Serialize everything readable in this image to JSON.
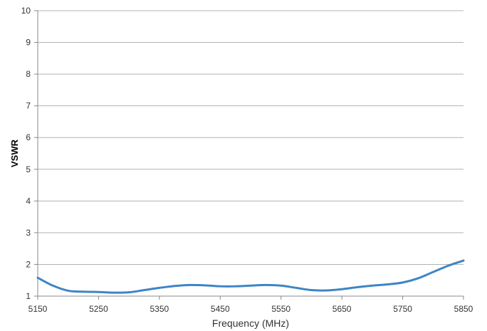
{
  "chart_data": {
    "type": "line",
    "title": "",
    "xlabel": "Frequency (MHz)",
    "ylabel": "VSWR",
    "xlim": [
      5150,
      5850
    ],
    "ylim": [
      1,
      10
    ],
    "x_ticks": [
      5150,
      5250,
      5350,
      5450,
      5550,
      5650,
      5750,
      5850
    ],
    "y_ticks": [
      1,
      2,
      3,
      4,
      5,
      6,
      7,
      8,
      9,
      10
    ],
    "grid": "horizontal",
    "legend": "none",
    "series": [
      {
        "color": "#3d85c6",
        "x": [
          5150,
          5175,
          5200,
          5225,
          5250,
          5275,
          5300,
          5325,
          5350,
          5375,
          5400,
          5425,
          5450,
          5475,
          5500,
          5525,
          5550,
          5575,
          5600,
          5625,
          5650,
          5675,
          5700,
          5725,
          5750,
          5775,
          5800,
          5825,
          5850
        ],
        "y": [
          1.58,
          1.33,
          1.17,
          1.14,
          1.13,
          1.11,
          1.12,
          1.19,
          1.26,
          1.32,
          1.35,
          1.34,
          1.31,
          1.31,
          1.33,
          1.35,
          1.33,
          1.26,
          1.19,
          1.18,
          1.22,
          1.28,
          1.33,
          1.37,
          1.43,
          1.56,
          1.76,
          1.96,
          2.12
        ]
      }
    ]
  }
}
